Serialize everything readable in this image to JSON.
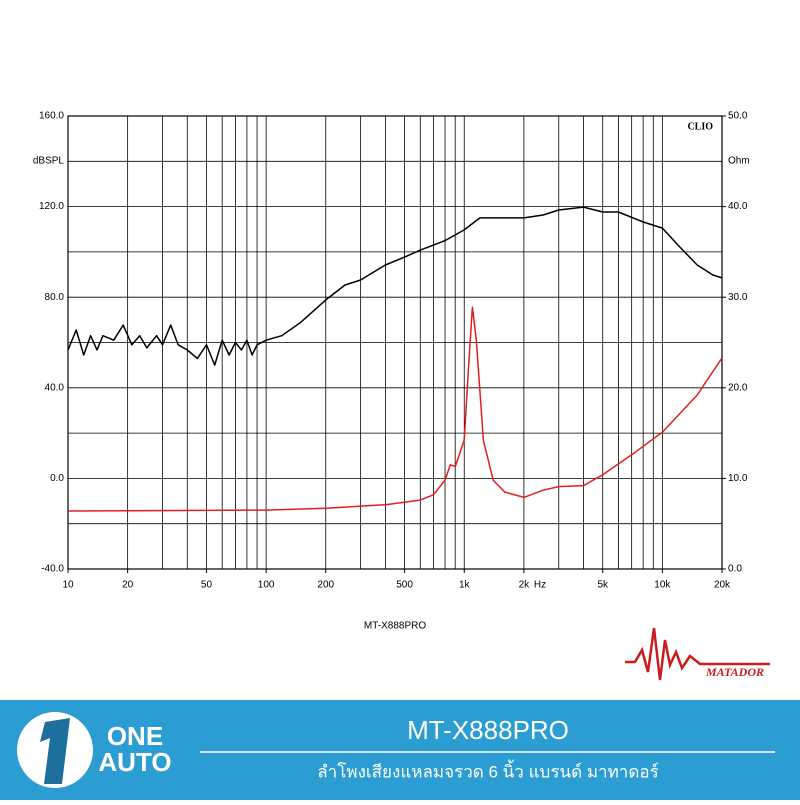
{
  "chart_data": {
    "type": "line",
    "log_x": true,
    "y_label": "dBSPL",
    "y2_label": "Ohm",
    "x_unit": "Hz",
    "corner_label": "CLIO",
    "caption": "MT-X888PRO",
    "xlim": [
      10,
      20000
    ],
    "xticks": [
      10,
      20,
      50,
      100,
      200,
      500,
      {
        "value": 1000,
        "label": "1k"
      },
      {
        "value": 2000,
        "label": "2k"
      },
      {
        "value": 5000,
        "label": "5k"
      },
      {
        "value": 10000,
        "label": "10k"
      },
      {
        "value": 20000,
        "label": "20k"
      }
    ],
    "xgrid": [
      10,
      20,
      30,
      40,
      50,
      60,
      70,
      80,
      90,
      100,
      200,
      300,
      400,
      500,
      600,
      700,
      800,
      900,
      1000,
      2000,
      3000,
      4000,
      5000,
      6000,
      7000,
      8000,
      9000,
      10000,
      20000
    ],
    "ylim": [
      -40,
      160
    ],
    "yticks": [
      {
        "value": -40,
        "label": "-40.0"
      },
      {
        "value": 0,
        "label": "0.0"
      },
      {
        "value": 40,
        "label": "40.0"
      },
      {
        "value": 80,
        "label": "80.0"
      },
      {
        "value": 120,
        "label": "120.0"
      },
      {
        "value": 160,
        "label": "160.0"
      }
    ],
    "ygrid": [
      -20,
      20,
      60,
      100,
      140
    ],
    "y2lim": [
      0,
      50
    ],
    "y2ticks": [
      {
        "value": 0,
        "label": "0.0"
      },
      {
        "value": 10,
        "label": "10.0"
      },
      {
        "value": 20,
        "label": "20.0"
      },
      {
        "value": 30,
        "label": "30.0"
      },
      {
        "value": 40,
        "label": "40.0"
      },
      {
        "value": 50,
        "label": "50.0"
      }
    ],
    "grid": true,
    "series": [
      {
        "color": "#000000",
        "axis": "y",
        "x": [
          10,
          11,
          12,
          13,
          14,
          15,
          17,
          19,
          21,
          23,
          25,
          28,
          30,
          33,
          36,
          40,
          45,
          50,
          55,
          60,
          65,
          70,
          75,
          80,
          85,
          90,
          100,
          120,
          150,
          200,
          250,
          300,
          400,
          500,
          600,
          700,
          800,
          1000,
          1200,
          1500,
          2000,
          2500,
          3000,
          4000,
          5000,
          6000,
          8000,
          10000,
          12000,
          15000,
          18000,
          20000
        ],
        "values": [
          56.7,
          65.5,
          54.5,
          63,
          56.7,
          63,
          61,
          67.7,
          59,
          63,
          57.6,
          63,
          59,
          67.7,
          59,
          56.7,
          53,
          59,
          50,
          61,
          54.5,
          60,
          56.7,
          61,
          54.5,
          59,
          61,
          63,
          69,
          78.8,
          85.4,
          87.6,
          94.2,
          97.7,
          100.8,
          103,
          105,
          109.7,
          115,
          115,
          115,
          116.3,
          118.5,
          119.8,
          117.6,
          117.6,
          113.2,
          110.5,
          103,
          94.2,
          89.8,
          88.5
        ]
      },
      {
        "color": "#e31e1e",
        "axis": "y2",
        "x": [
          10,
          100,
          200,
          400,
          600,
          700,
          800,
          850,
          900,
          1000,
          1050,
          1100,
          1150,
          1250,
          1400,
          1600,
          2000,
          2500,
          3000,
          4000,
          5000,
          7000,
          10000,
          15000,
          20000
        ],
        "values": [
          6.4,
          6.5,
          6.7,
          7.1,
          7.6,
          8.2,
          9.8,
          11.5,
          11.3,
          14.2,
          22,
          28.9,
          25.3,
          14.2,
          9.8,
          8.5,
          7.9,
          8.7,
          9.1,
          9.2,
          10.4,
          12.6,
          15.1,
          19.2,
          23.3
        ]
      }
    ]
  },
  "banner": {
    "logo_top": "ONE",
    "logo_bottom": "AUTO",
    "title": "MT-X888PRO",
    "subtitle": "ลำโพงเสียงแหลมจรวด 6 นิ้ว แบรนด์ มาทาดอร์",
    "brand": "MATADOR"
  }
}
